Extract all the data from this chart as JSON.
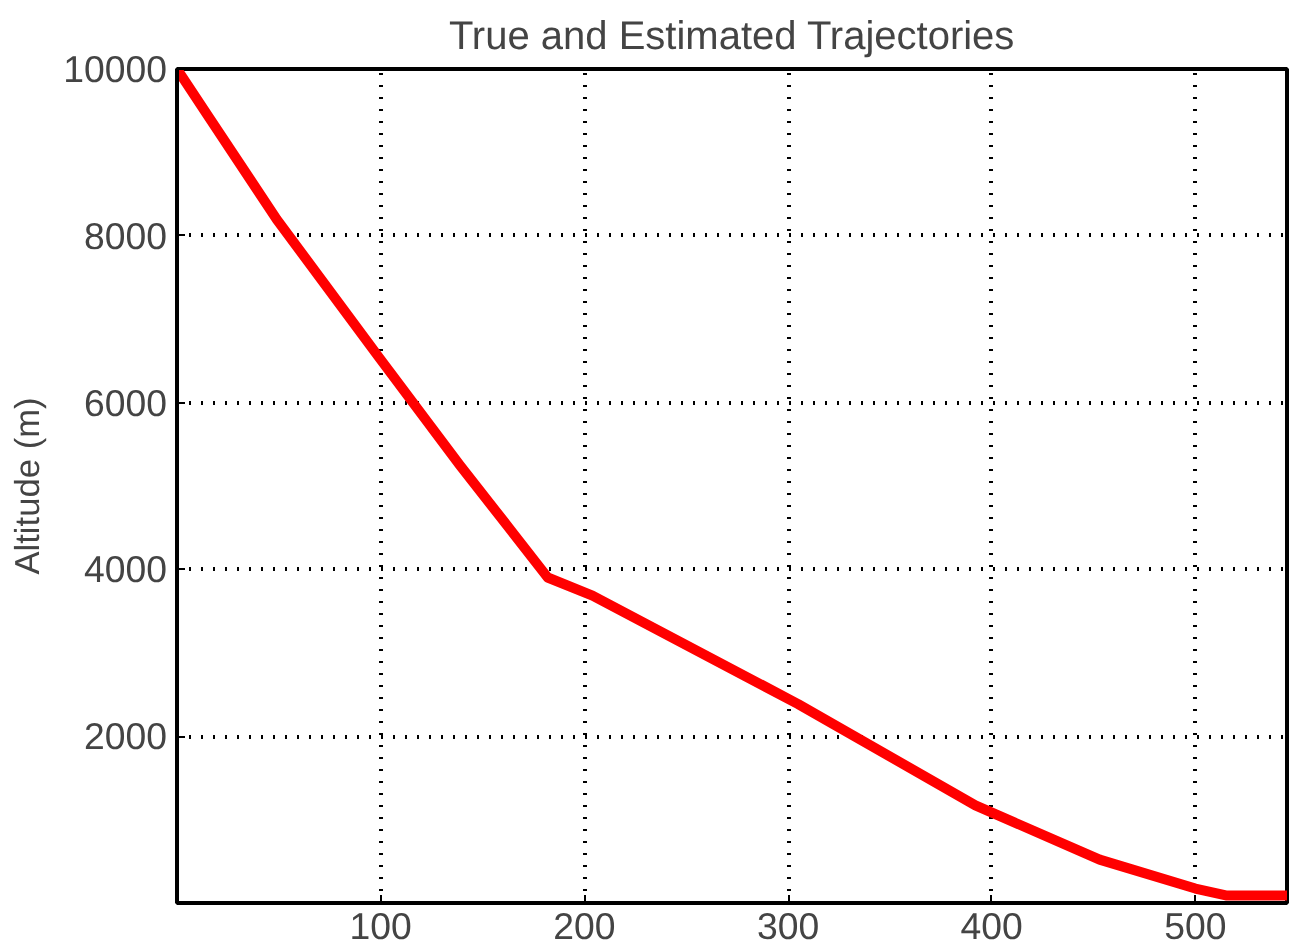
{
  "chart_data": {
    "type": "line",
    "title": "True and Estimated Trajectories",
    "ylabel": "Altitude (m)",
    "x": [
      0,
      16,
      49,
      99,
      139,
      164,
      182,
      204,
      305,
      392,
      453,
      500,
      515,
      545
    ],
    "series": [
      {
        "color": "#ff0000",
        "values": [
          10000,
          9410,
          8196,
          6548,
          5247,
          4466,
          3903,
          3686,
          2385,
          1171,
          520,
          173,
          90,
          90
        ]
      }
    ],
    "xlim": [
      0,
      545
    ],
    "ylim": [
      0,
      10000
    ],
    "xticks": [
      100,
      200,
      300,
      400,
      500
    ],
    "yticks": [
      2000,
      4000,
      6000,
      8000,
      10000
    ],
    "grid": true,
    "line_style": "solid",
    "marker": "none"
  }
}
